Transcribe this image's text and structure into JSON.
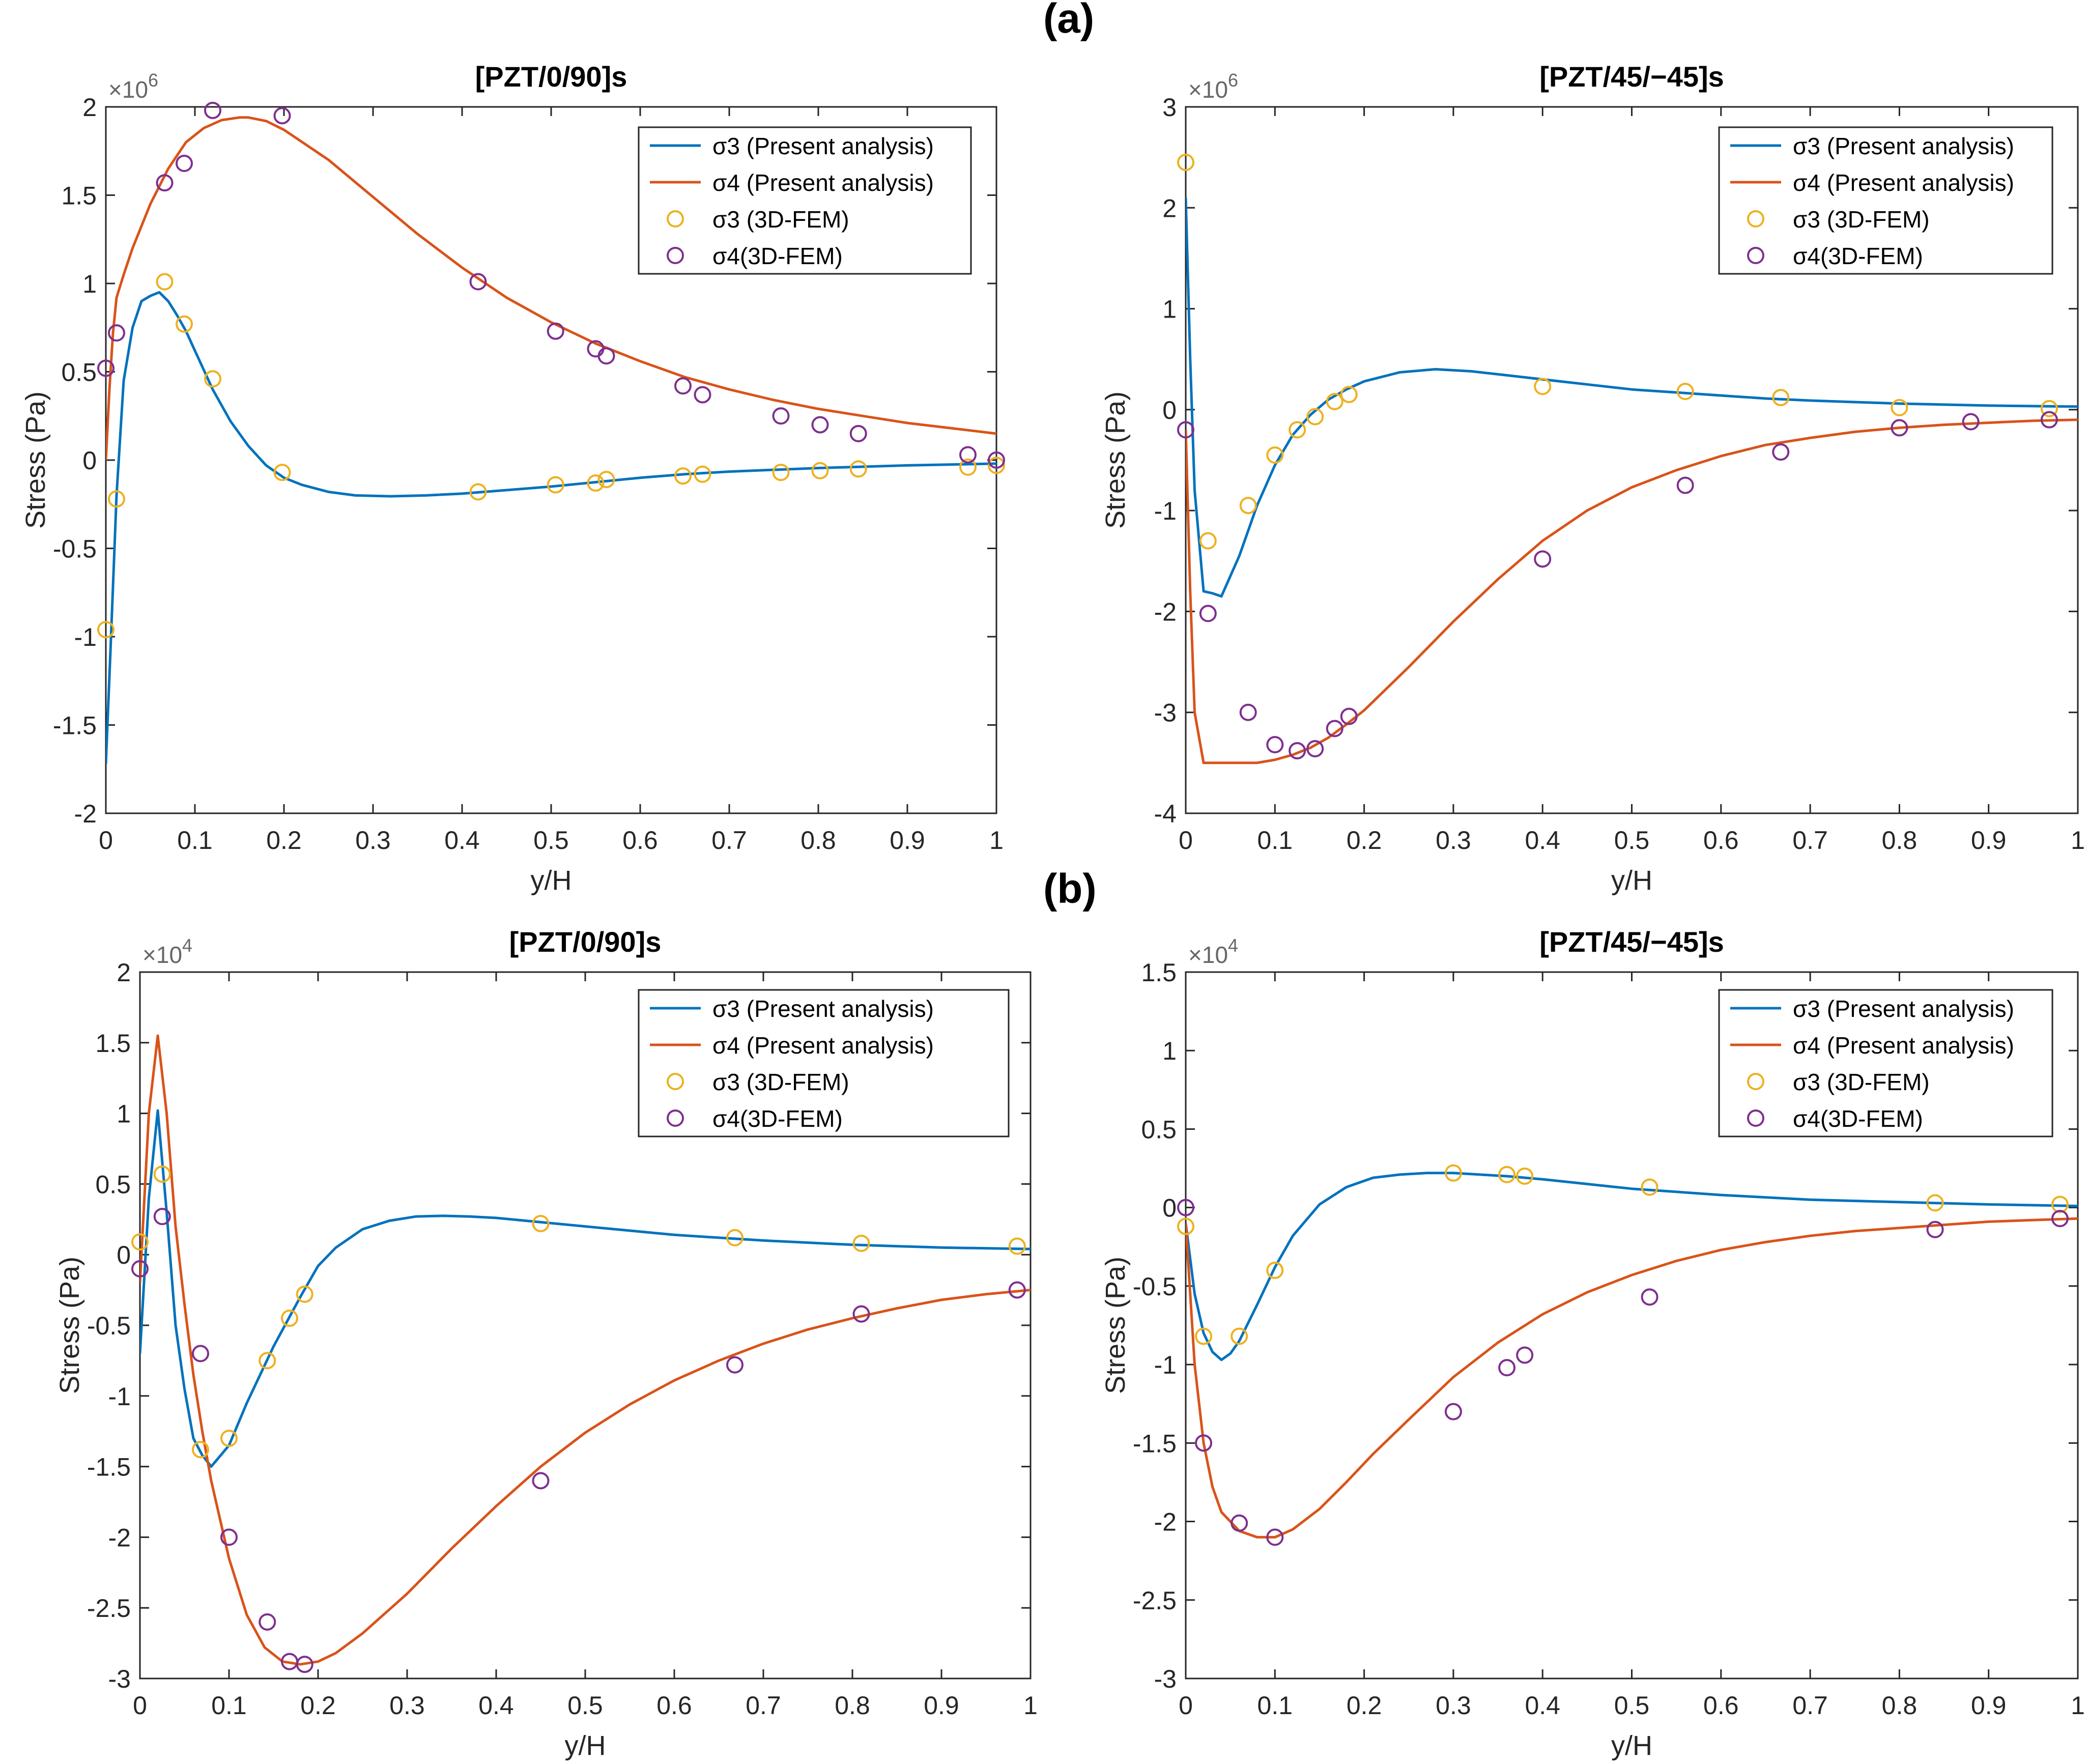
{
  "figure": {
    "panel_labels": [
      "(a)",
      "(b)"
    ]
  },
  "chart_data": [
    {
      "type": "line",
      "panel": "(a)",
      "title": "[PZT/0/90]s",
      "xlabel": "y/H",
      "ylabel": "Stress (Pa)",
      "y_exponent": "6",
      "xlim": [
        0,
        1
      ],
      "ylim": [
        -2,
        2
      ],
      "xticks": [
        0,
        0.1,
        0.2,
        0.3,
        0.4,
        0.5,
        0.6,
        0.7,
        0.8,
        0.9,
        1
      ],
      "xtick_labels": [
        "0",
        "0.1",
        "0.2",
        "0.3",
        "0.4",
        "0.5",
        "0.6",
        "0.7",
        "0.8",
        "0.9",
        "1"
      ],
      "yticks": [
        -2,
        -1.5,
        -1,
        -0.5,
        0,
        0.5,
        1,
        1.5,
        2
      ],
      "ytick_labels": [
        "-2",
        "-1.5",
        "-1",
        "-0.5",
        "0",
        "0.5",
        "1",
        "1.5",
        "2"
      ],
      "legend": "top-right",
      "series": [
        {
          "name": "σ3 (Present analysis)",
          "kind": "line",
          "color": "#0072BD",
          "x": [
            0,
            0.005,
            0.012,
            0.02,
            0.03,
            0.04,
            0.05,
            0.06,
            0.07,
            0.08,
            0.09,
            0.1,
            0.12,
            0.14,
            0.16,
            0.18,
            0.2,
            0.22,
            0.25,
            0.28,
            0.32,
            0.36,
            0.4,
            0.45,
            0.5,
            0.55,
            0.6,
            0.65,
            0.7,
            0.8,
            0.9,
            1.0
          ],
          "y": [
            -1.72,
            -1.1,
            -0.2,
            0.45,
            0.75,
            0.9,
            0.93,
            0.95,
            0.9,
            0.82,
            0.73,
            0.62,
            0.4,
            0.22,
            0.08,
            -0.03,
            -0.1,
            -0.14,
            -0.18,
            -0.2,
            -0.205,
            -0.2,
            -0.19,
            -0.17,
            -0.15,
            -0.125,
            -0.1,
            -0.08,
            -0.065,
            -0.045,
            -0.03,
            -0.02
          ]
        },
        {
          "name": "σ4 (Present analysis)",
          "kind": "line",
          "color": "#D95319",
          "x": [
            0,
            0.004,
            0.008,
            0.012,
            0.02,
            0.03,
            0.05,
            0.07,
            0.09,
            0.11,
            0.13,
            0.15,
            0.16,
            0.18,
            0.2,
            0.25,
            0.3,
            0.35,
            0.4,
            0.45,
            0.5,
            0.55,
            0.6,
            0.65,
            0.7,
            0.75,
            0.8,
            0.85,
            0.9,
            0.95,
            1.0
          ],
          "y": [
            0.0,
            0.4,
            0.72,
            0.92,
            1.05,
            1.2,
            1.45,
            1.65,
            1.8,
            1.88,
            1.925,
            1.94,
            1.94,
            1.92,
            1.87,
            1.7,
            1.49,
            1.28,
            1.09,
            0.92,
            0.78,
            0.66,
            0.56,
            0.47,
            0.4,
            0.34,
            0.29,
            0.25,
            0.21,
            0.18,
            0.15
          ]
        },
        {
          "name": "σ3 (3D-FEM)",
          "kind": "marker",
          "color": "#EDB120",
          "x": [
            0.0,
            0.012,
            0.066,
            0.088,
            0.12,
            0.198,
            0.418,
            0.505,
            0.55,
            0.562,
            0.648,
            0.67,
            0.758,
            0.802,
            0.845,
            0.968,
            1.0
          ],
          "y": [
            -0.96,
            -0.22,
            1.01,
            0.77,
            0.46,
            -0.07,
            -0.18,
            -0.14,
            -0.13,
            -0.11,
            -0.09,
            -0.08,
            -0.07,
            -0.06,
            -0.05,
            -0.04,
            -0.03
          ]
        },
        {
          "name": "σ4(3D-FEM)",
          "kind": "marker",
          "color": "#7E2F8E",
          "x": [
            0.0,
            0.012,
            0.066,
            0.088,
            0.12,
            0.198,
            0.418,
            0.505,
            0.55,
            0.562,
            0.648,
            0.67,
            0.758,
            0.802,
            0.845,
            0.968,
            1.0
          ],
          "y": [
            0.52,
            0.72,
            1.57,
            1.68,
            1.98,
            1.95,
            1.01,
            0.73,
            0.63,
            0.59,
            0.42,
            0.37,
            0.25,
            0.2,
            0.15,
            0.03,
            0.0
          ]
        }
      ]
    },
    {
      "type": "line",
      "panel": "(a)",
      "title": "[PZT/45/−45]s",
      "xlabel": "y/H",
      "ylabel": "Stress (Pa)",
      "y_exponent": "6",
      "xlim": [
        0,
        1
      ],
      "ylim": [
        -4,
        3
      ],
      "xticks": [
        0,
        0.1,
        0.2,
        0.3,
        0.4,
        0.5,
        0.6,
        0.7,
        0.8,
        0.9,
        1
      ],
      "xtick_labels": [
        "0",
        "0.1",
        "0.2",
        "0.3",
        "0.4",
        "0.5",
        "0.6",
        "0.7",
        "0.8",
        "0.9",
        "1"
      ],
      "yticks": [
        -4,
        -3,
        -2,
        -1,
        0,
        1,
        2,
        3
      ],
      "ytick_labels": [
        "-4",
        "-3",
        "-2",
        "-1",
        "0",
        "1",
        "2",
        "3"
      ],
      "legend": "top-right",
      "series": [
        {
          "name": "σ3 (Present analysis)",
          "kind": "line",
          "color": "#0072BD",
          "x": [
            0,
            0.005,
            0.01,
            0.02,
            0.03,
            0.04,
            0.06,
            0.08,
            0.1,
            0.12,
            0.14,
            0.16,
            0.18,
            0.2,
            0.24,
            0.28,
            0.32,
            0.36,
            0.4,
            0.45,
            0.5,
            0.55,
            0.6,
            0.65,
            0.7,
            0.8,
            0.9,
            1.0
          ],
          "y": [
            2.1,
            0.5,
            -0.8,
            -1.8,
            -1.82,
            -1.85,
            -1.45,
            -0.95,
            -0.55,
            -0.25,
            -0.05,
            0.1,
            0.2,
            0.28,
            0.37,
            0.4,
            0.38,
            0.34,
            0.3,
            0.25,
            0.2,
            0.17,
            0.14,
            0.11,
            0.09,
            0.06,
            0.04,
            0.03
          ]
        },
        {
          "name": "σ4 (Present analysis)",
          "kind": "line",
          "color": "#D95319",
          "x": [
            0,
            0.005,
            0.01,
            0.02,
            0.04,
            0.06,
            0.08,
            0.1,
            0.12,
            0.14,
            0.16,
            0.18,
            0.2,
            0.25,
            0.3,
            0.35,
            0.4,
            0.45,
            0.5,
            0.55,
            0.6,
            0.65,
            0.7,
            0.75,
            0.8,
            0.85,
            0.9,
            0.95,
            1.0
          ],
          "y": [
            -0.2,
            -1.8,
            -3.0,
            -3.5,
            -3.5,
            -3.5,
            -3.5,
            -3.47,
            -3.42,
            -3.35,
            -3.25,
            -3.12,
            -2.98,
            -2.55,
            -2.1,
            -1.68,
            -1.3,
            -1.0,
            -0.77,
            -0.6,
            -0.46,
            -0.35,
            -0.28,
            -0.22,
            -0.18,
            -0.15,
            -0.13,
            -0.11,
            -0.1
          ]
        },
        {
          "name": "σ3 (3D-FEM)",
          "kind": "marker",
          "color": "#EDB120",
          "x": [
            0.0,
            0.025,
            0.07,
            0.1,
            0.125,
            0.145,
            0.167,
            0.183,
            0.4,
            0.56,
            0.667,
            0.8,
            0.968
          ],
          "y": [
            2.45,
            -1.3,
            -0.95,
            -0.45,
            -0.2,
            -0.07,
            0.08,
            0.15,
            0.23,
            0.18,
            0.12,
            0.02,
            0.01
          ]
        },
        {
          "name": "σ4(3D-FEM)",
          "kind": "marker",
          "color": "#7E2F8E",
          "x": [
            0.0,
            0.025,
            0.07,
            0.1,
            0.125,
            0.145,
            0.167,
            0.183,
            0.4,
            0.56,
            0.667,
            0.8,
            0.88,
            0.968
          ],
          "y": [
            -0.2,
            -2.02,
            -3.0,
            -3.32,
            -3.38,
            -3.36,
            -3.16,
            -3.04,
            -1.48,
            -0.75,
            -0.42,
            -0.18,
            -0.12,
            -0.1
          ]
        }
      ]
    },
    {
      "type": "line",
      "panel": "(b)",
      "title": "[PZT/0/90]s",
      "xlabel": "y/H",
      "ylabel": "Stress (Pa)",
      "y_exponent": "4",
      "xlim": [
        0,
        1
      ],
      "ylim": [
        -3,
        2
      ],
      "xticks": [
        0,
        0.1,
        0.2,
        0.3,
        0.4,
        0.5,
        0.6,
        0.7,
        0.8,
        0.9,
        1
      ],
      "xtick_labels": [
        "0",
        "0.1",
        "0.2",
        "0.3",
        "0.4",
        "0.5",
        "0.6",
        "0.7",
        "0.8",
        "0.9",
        "1"
      ],
      "yticks": [
        -3,
        -2.5,
        -2,
        -1.5,
        -1,
        -0.5,
        0,
        0.5,
        1,
        1.5,
        2
      ],
      "ytick_labels": [
        "-3",
        "-2.5",
        "-2",
        "-1.5",
        "-1",
        "-0.5",
        "0",
        "0.5",
        "1",
        "1.5",
        "2"
      ],
      "legend": "top-right",
      "series": [
        {
          "name": "σ3 (Present analysis)",
          "kind": "line",
          "color": "#0072BD",
          "x": [
            0,
            0.01,
            0.02,
            0.03,
            0.04,
            0.05,
            0.06,
            0.07,
            0.08,
            0.1,
            0.12,
            0.15,
            0.18,
            0.2,
            0.22,
            0.25,
            0.28,
            0.31,
            0.34,
            0.37,
            0.4,
            0.45,
            0.5,
            0.55,
            0.6,
            0.65,
            0.7,
            0.8,
            0.9,
            1.0
          ],
          "y": [
            -0.7,
            0.4,
            1.02,
            0.3,
            -0.5,
            -0.95,
            -1.3,
            -1.42,
            -1.5,
            -1.35,
            -1.05,
            -0.65,
            -0.3,
            -0.08,
            0.05,
            0.18,
            0.24,
            0.27,
            0.275,
            0.27,
            0.26,
            0.23,
            0.2,
            0.17,
            0.14,
            0.12,
            0.1,
            0.07,
            0.05,
            0.04
          ]
        },
        {
          "name": "σ4 (Present analysis)",
          "kind": "line",
          "color": "#D95319",
          "x": [
            0,
            0.01,
            0.02,
            0.03,
            0.04,
            0.05,
            0.06,
            0.07,
            0.08,
            0.1,
            0.12,
            0.14,
            0.16,
            0.18,
            0.2,
            0.22,
            0.25,
            0.3,
            0.35,
            0.4,
            0.45,
            0.5,
            0.55,
            0.6,
            0.65,
            0.7,
            0.75,
            0.8,
            0.85,
            0.9,
            0.95,
            1.0
          ],
          "y": [
            -0.2,
            1.0,
            1.55,
            1.0,
            0.2,
            -0.35,
            -0.85,
            -1.25,
            -1.6,
            -2.15,
            -2.55,
            -2.78,
            -2.88,
            -2.9,
            -2.88,
            -2.82,
            -2.68,
            -2.4,
            -2.08,
            -1.78,
            -1.5,
            -1.26,
            -1.06,
            -0.89,
            -0.75,
            -0.63,
            -0.53,
            -0.45,
            -0.38,
            -0.32,
            -0.28,
            -0.25
          ]
        },
        {
          "name": "σ3 (3D-FEM)",
          "kind": "marker",
          "color": "#EDB120",
          "x": [
            0.0,
            0.025,
            0.068,
            0.1,
            0.143,
            0.168,
            0.185,
            0.45,
            0.668,
            0.81,
            0.985
          ],
          "y": [
            0.09,
            0.57,
            -1.38,
            -1.3,
            -0.75,
            -0.45,
            -0.28,
            0.22,
            0.12,
            0.08,
            0.06
          ]
        },
        {
          "name": "σ4(3D-FEM)",
          "kind": "marker",
          "color": "#7E2F8E",
          "x": [
            0.0,
            0.025,
            0.068,
            0.1,
            0.143,
            0.168,
            0.185,
            0.45,
            0.668,
            0.81,
            0.985
          ],
          "y": [
            -0.1,
            0.27,
            -0.7,
            -2.0,
            -2.6,
            -2.88,
            -2.9,
            -1.6,
            -0.78,
            -0.42,
            -0.25
          ]
        }
      ]
    },
    {
      "type": "line",
      "panel": "(b)",
      "title": "[PZT/45/−45]s",
      "xlabel": "y/H",
      "ylabel": "Stress (Pa)",
      "y_exponent": "4",
      "xlim": [
        0,
        1
      ],
      "ylim": [
        -3,
        1.5
      ],
      "xticks": [
        0,
        0.1,
        0.2,
        0.3,
        0.4,
        0.5,
        0.6,
        0.7,
        0.8,
        0.9,
        1
      ],
      "xtick_labels": [
        "0",
        "0.1",
        "0.2",
        "0.3",
        "0.4",
        "0.5",
        "0.6",
        "0.7",
        "0.8",
        "0.9",
        "1"
      ],
      "yticks": [
        -3,
        -2.5,
        -2,
        -1.5,
        -1,
        -0.5,
        0,
        0.5,
        1,
        1.5
      ],
      "ytick_labels": [
        "-3",
        "-2.5",
        "-2",
        "-1.5",
        "-1",
        "-0.5",
        "0",
        "0.5",
        "1",
        "1.5"
      ],
      "legend": "top-right",
      "series": [
        {
          "name": "σ3 (Present analysis)",
          "kind": "line",
          "color": "#0072BD",
          "x": [
            0,
            0.01,
            0.02,
            0.03,
            0.04,
            0.05,
            0.06,
            0.08,
            0.1,
            0.12,
            0.15,
            0.18,
            0.21,
            0.24,
            0.27,
            0.3,
            0.33,
            0.36,
            0.4,
            0.45,
            0.5,
            0.55,
            0.6,
            0.65,
            0.7,
            0.8,
            0.9,
            1.0
          ],
          "y": [
            -0.1,
            -0.55,
            -0.8,
            -0.92,
            -0.97,
            -0.93,
            -0.85,
            -0.62,
            -0.38,
            -0.18,
            0.02,
            0.13,
            0.19,
            0.21,
            0.22,
            0.22,
            0.21,
            0.2,
            0.18,
            0.15,
            0.12,
            0.1,
            0.08,
            0.065,
            0.05,
            0.035,
            0.02,
            0.01
          ]
        },
        {
          "name": "σ4 (Present analysis)",
          "kind": "line",
          "color": "#D95319",
          "x": [
            0,
            0.005,
            0.01,
            0.02,
            0.03,
            0.04,
            0.06,
            0.08,
            0.1,
            0.12,
            0.15,
            0.18,
            0.21,
            0.25,
            0.3,
            0.35,
            0.4,
            0.45,
            0.5,
            0.55,
            0.6,
            0.65,
            0.7,
            0.75,
            0.8,
            0.85,
            0.9,
            0.95,
            1.0
          ],
          "y": [
            -0.1,
            -0.55,
            -1.0,
            -1.5,
            -1.78,
            -1.94,
            -2.06,
            -2.1,
            -2.1,
            -2.05,
            -1.92,
            -1.75,
            -1.57,
            -1.35,
            -1.08,
            -0.86,
            -0.68,
            -0.54,
            -0.43,
            -0.34,
            -0.27,
            -0.22,
            -0.18,
            -0.15,
            -0.13,
            -0.11,
            -0.09,
            -0.08,
            -0.07
          ]
        },
        {
          "name": "σ3 (3D-FEM)",
          "kind": "marker",
          "color": "#EDB120",
          "x": [
            0.0,
            0.02,
            0.06,
            0.1,
            0.3,
            0.36,
            0.38,
            0.52,
            0.84,
            0.98
          ],
          "y": [
            -0.12,
            -0.82,
            -0.82,
            -0.4,
            0.22,
            0.21,
            0.2,
            0.13,
            0.03,
            0.02
          ]
        },
        {
          "name": "σ4(3D-FEM)",
          "kind": "marker",
          "color": "#7E2F8E",
          "x": [
            0.0,
            0.02,
            0.06,
            0.1,
            0.3,
            0.36,
            0.38,
            0.52,
            0.84,
            0.98
          ],
          "y": [
            0.0,
            -1.5,
            -2.01,
            -2.1,
            -1.3,
            -1.02,
            -0.94,
            -0.57,
            -0.14,
            -0.07
          ]
        }
      ]
    }
  ]
}
